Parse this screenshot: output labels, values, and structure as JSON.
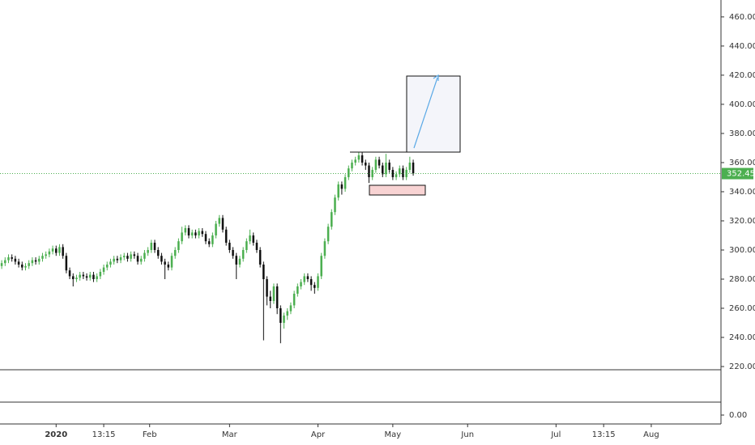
{
  "chart_data": {
    "type": "candlestick",
    "ohlc": [
      [
        289,
        293,
        287,
        291
      ],
      [
        291,
        295,
        289,
        293
      ],
      [
        293,
        297,
        291,
        295
      ],
      [
        295,
        297,
        292,
        294
      ],
      [
        294,
        296,
        290,
        292
      ],
      [
        292,
        294,
        288,
        290
      ],
      [
        290,
        292,
        286,
        288
      ],
      [
        288,
        291,
        286,
        289
      ],
      [
        289,
        293,
        287,
        291
      ],
      [
        291,
        295,
        289,
        293
      ],
      [
        293,
        295,
        290,
        292
      ],
      [
        292,
        296,
        290,
        294
      ],
      [
        294,
        298,
        292,
        296
      ],
      [
        296,
        299,
        294,
        297
      ],
      [
        297,
        301,
        295,
        299
      ],
      [
        299,
        303,
        297,
        301
      ],
      [
        301,
        303,
        296,
        298
      ],
      [
        298,
        304,
        296,
        302
      ],
      [
        302,
        304,
        294,
        296
      ],
      [
        296,
        298,
        284,
        286
      ],
      [
        286,
        288,
        280,
        282
      ],
      [
        282,
        284,
        275,
        280
      ],
      [
        280,
        283,
        278,
        281
      ],
      [
        281,
        285,
        279,
        283
      ],
      [
        283,
        285,
        280,
        282
      ],
      [
        282,
        284,
        279,
        281
      ],
      [
        281,
        285,
        279,
        283
      ],
      [
        283,
        285,
        278,
        280
      ],
      [
        280,
        284,
        278,
        282
      ],
      [
        282,
        287,
        280,
        285
      ],
      [
        285,
        290,
        283,
        288
      ],
      [
        288,
        292,
        286,
        290
      ],
      [
        290,
        294,
        288,
        292
      ],
      [
        292,
        296,
        290,
        294
      ],
      [
        294,
        296,
        291,
        293
      ],
      [
        293,
        297,
        291,
        295
      ],
      [
        295,
        298,
        293,
        296
      ],
      [
        296,
        298,
        292,
        294
      ],
      [
        294,
        299,
        292,
        297
      ],
      [
        297,
        299,
        294,
        296
      ],
      [
        296,
        298,
        290,
        292
      ],
      [
        292,
        296,
        290,
        294
      ],
      [
        294,
        300,
        292,
        298
      ],
      [
        298,
        302,
        296,
        300
      ],
      [
        300,
        307,
        298,
        305
      ],
      [
        305,
        307,
        298,
        300
      ],
      [
        300,
        302,
        294,
        296
      ],
      [
        296,
        298,
        290,
        292
      ],
      [
        292,
        294,
        280,
        290
      ],
      [
        290,
        292,
        286,
        288
      ],
      [
        288,
        298,
        286,
        296
      ],
      [
        296,
        302,
        294,
        300
      ],
      [
        300,
        308,
        298,
        306
      ],
      [
        306,
        316,
        304,
        312
      ],
      [
        312,
        317,
        310,
        315
      ],
      [
        315,
        317,
        308,
        310
      ],
      [
        310,
        314,
        308,
        312
      ],
      [
        312,
        314,
        308,
        310
      ],
      [
        310,
        315,
        308,
        313
      ],
      [
        313,
        315,
        309,
        311
      ],
      [
        311,
        313,
        304,
        306
      ],
      [
        306,
        308,
        302,
        304
      ],
      [
        304,
        312,
        302,
        310
      ],
      [
        310,
        320,
        308,
        318
      ],
      [
        318,
        324,
        316,
        322
      ],
      [
        322,
        324,
        312,
        314
      ],
      [
        314,
        316,
        303,
        305
      ],
      [
        305,
        307,
        298,
        300
      ],
      [
        300,
        302,
        294,
        296
      ],
      [
        296,
        298,
        280,
        290
      ],
      [
        290,
        296,
        288,
        294
      ],
      [
        294,
        302,
        292,
        300
      ],
      [
        300,
        308,
        298,
        306
      ],
      [
        306,
        314,
        304,
        310
      ],
      [
        310,
        312,
        303,
        305
      ],
      [
        305,
        307,
        298,
        300
      ],
      [
        300,
        302,
        288,
        290
      ],
      [
        290,
        292,
        238,
        280
      ],
      [
        280,
        282,
        262,
        268
      ],
      [
        268,
        272,
        260,
        265
      ],
      [
        265,
        277,
        263,
        275
      ],
      [
        275,
        277,
        256,
        260
      ],
      [
        260,
        262,
        236,
        250
      ],
      [
        250,
        257,
        246,
        255
      ],
      [
        255,
        260,
        252,
        258
      ],
      [
        258,
        264,
        256,
        262
      ],
      [
        262,
        272,
        260,
        270
      ],
      [
        270,
        277,
        268,
        275
      ],
      [
        275,
        280,
        273,
        278
      ],
      [
        278,
        284,
        276,
        282
      ],
      [
        282,
        284,
        278,
        280
      ],
      [
        280,
        282,
        272,
        276
      ],
      [
        276,
        278,
        270,
        274
      ],
      [
        274,
        284,
        272,
        282
      ],
      [
        282,
        298,
        280,
        296
      ],
      [
        296,
        308,
        294,
        306
      ],
      [
        306,
        318,
        304,
        316
      ],
      [
        316,
        328,
        314,
        326
      ],
      [
        326,
        338,
        324,
        336
      ],
      [
        336,
        347,
        334,
        345
      ],
      [
        345,
        347,
        338,
        342
      ],
      [
        342,
        352,
        340,
        350
      ],
      [
        350,
        358,
        348,
        356
      ],
      [
        356,
        362,
        354,
        360
      ],
      [
        360,
        364,
        358,
        362
      ],
      [
        362,
        367,
        360,
        365
      ],
      [
        365,
        367,
        358,
        360
      ],
      [
        360,
        362,
        355,
        358
      ],
      [
        358,
        360,
        346,
        350
      ],
      [
        350,
        357,
        348,
        355
      ],
      [
        355,
        364,
        353,
        362
      ],
      [
        362,
        364,
        356,
        358
      ],
      [
        358,
        360,
        350,
        352
      ],
      [
        352,
        366,
        350,
        360
      ],
      [
        360,
        362,
        353,
        355
      ],
      [
        355,
        357,
        348,
        350
      ],
      [
        350,
        354,
        348,
        352
      ],
      [
        352,
        358,
        350,
        356
      ],
      [
        356,
        358,
        348,
        350
      ],
      [
        350,
        357,
        348,
        355
      ],
      [
        355,
        364,
        353,
        360
      ],
      [
        360,
        362,
        351,
        352.45
      ]
    ],
    "up_color": "#4caf50",
    "down_color": "#111111",
    "xlim": [
      -0.5,
      211.5
    ],
    "xticks": [
      {
        "value": 16,
        "label": "2020"
      },
      {
        "value": 30,
        "label": "13:15"
      },
      {
        "value": 43.5,
        "label": "Feb"
      },
      {
        "value": 67,
        "label": "Mar"
      },
      {
        "value": 93,
        "label": "Apr"
      },
      {
        "value": 115,
        "label": "May"
      },
      {
        "value": 137,
        "label": "Jun"
      },
      {
        "value": 163,
        "label": "Jul"
      },
      {
        "value": 177,
        "label": "13:15"
      },
      {
        "value": 191,
        "label": "Aug"
      }
    ],
    "ylim": [
      217.8,
      471.6
    ],
    "yticks": [
      {
        "value": 220,
        "label": "220.00"
      },
      {
        "value": 240,
        "label": "240.00"
      },
      {
        "value": 260,
        "label": "260.00"
      },
      {
        "value": 280,
        "label": "280.00"
      },
      {
        "value": 300,
        "label": "300.00"
      },
      {
        "value": 320,
        "label": "320.00"
      },
      {
        "value": 340,
        "label": "340.00"
      },
      {
        "value": 360,
        "label": "360.00"
      },
      {
        "value": 380,
        "label": "380.00"
      },
      {
        "value": 400,
        "label": "400.00"
      },
      {
        "value": 420,
        "label": "420.00"
      },
      {
        "value": 440,
        "label": "440.00"
      },
      {
        "value": 460,
        "label": "460.00"
      }
    ],
    "pane2_yticks": [
      {
        "value": 0,
        "label": "0.00"
      }
    ]
  }
}
